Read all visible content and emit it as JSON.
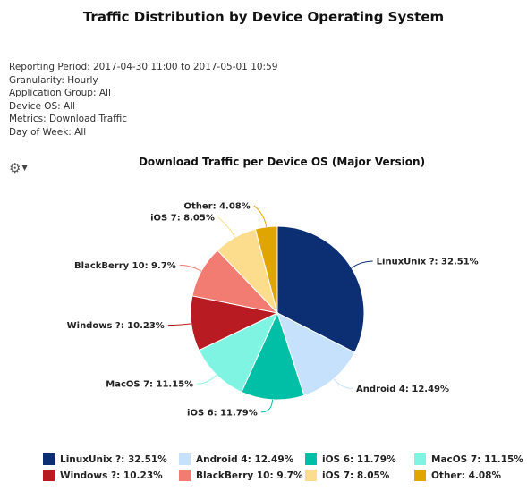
{
  "report": {
    "title": "Traffic Distribution by Device Operating System",
    "meta": [
      "Reporting Period: 2017-04-30 11:00 to 2017-05-01 10:59",
      "Granularity: Hourly",
      "Application Group: All",
      "Device OS: All",
      "Metrics: Download Traffic",
      "Day of Week: All"
    ]
  },
  "chart_data": {
    "type": "pie",
    "title": "Download Traffic per Device OS (Major Version)",
    "start_angle_deg": 0,
    "direction": "clockwise",
    "legend_position": "bottom",
    "slices": [
      {
        "label": "LinuxUnix ?",
        "value": 32.51,
        "display": "LinuxUnix ?: 32.51%",
        "color": "#0c2f73"
      },
      {
        "label": "Android 4",
        "value": 12.49,
        "display": "Android 4: 12.49%",
        "color": "#c6e1fb"
      },
      {
        "label": "iOS 6",
        "value": 11.79,
        "display": "iOS 6: 11.79%",
        "color": "#00bfa7"
      },
      {
        "label": "MacOS 7",
        "value": 11.15,
        "display": "MacOS 7: 11.15%",
        "color": "#7ff4e2"
      },
      {
        "label": "Windows ?",
        "value": 10.23,
        "display": "Windows ?: 10.23%",
        "color": "#b81c22"
      },
      {
        "label": "BlackBerry 10",
        "value": 9.7,
        "display": "BlackBerry 10: 9.7%",
        "color": "#f27c72"
      },
      {
        "label": "iOS 7",
        "value": 8.05,
        "display": "iOS 7: 8.05%",
        "color": "#fcdd8e"
      },
      {
        "label": "Other",
        "value": 4.08,
        "display": "Other: 4.08%",
        "color": "#e0a500"
      }
    ]
  },
  "toolbar": {
    "settings_icon": "gear-icon",
    "settings_caret": "chevron-down-icon"
  }
}
